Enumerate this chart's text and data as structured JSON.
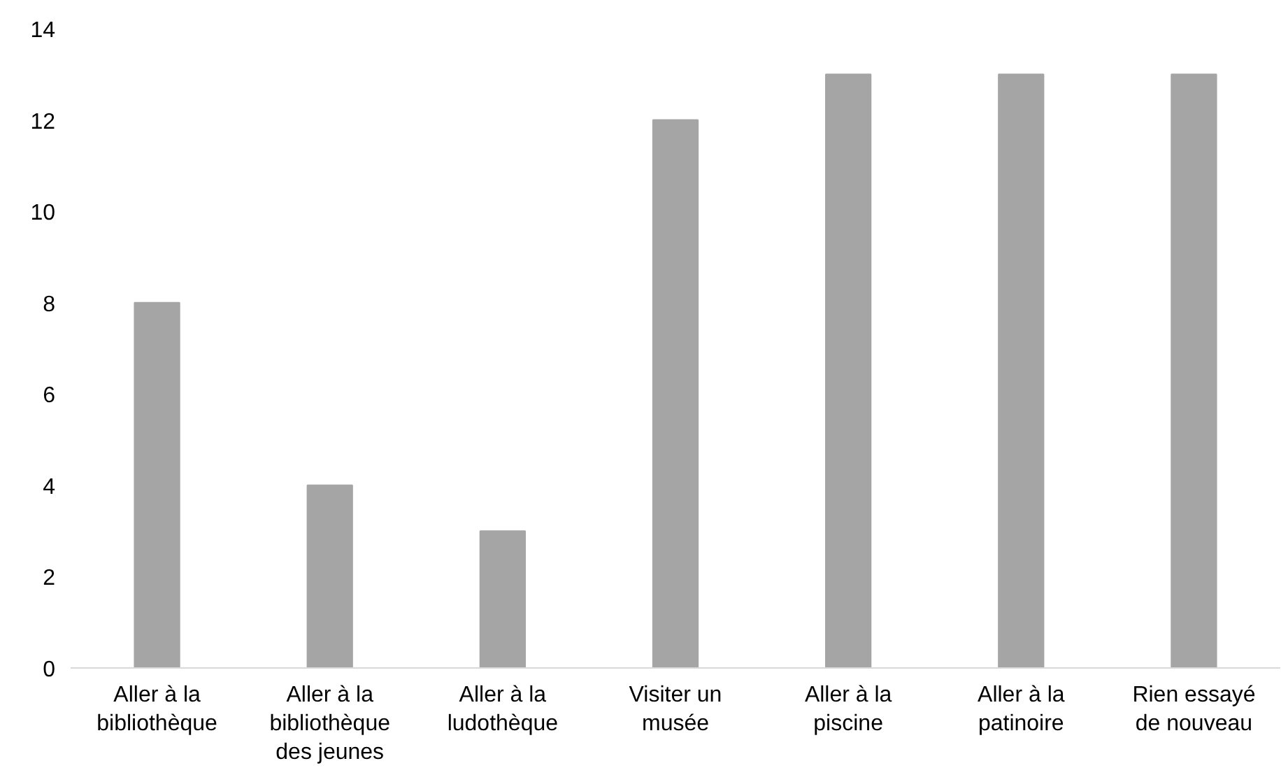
{
  "chart_data": {
    "type": "bar",
    "categories": [
      "Aller à la bibliothèque",
      "Aller à la bibliothèque des jeunes",
      "Aller à la ludothèque",
      "Visiter un musée",
      "Aller à la piscine",
      "Aller à la patinoire",
      "Rien essayé de nouveau"
    ],
    "values": [
      8,
      4,
      3,
      12,
      13,
      13,
      13
    ],
    "color": "#a5a5a5",
    "ylim": [
      0,
      14
    ],
    "yticks": [
      0,
      2,
      4,
      6,
      8,
      10,
      12,
      14
    ],
    "grid": false
  }
}
